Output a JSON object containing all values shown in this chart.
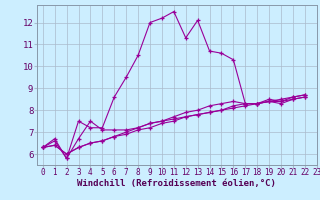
{
  "bg_color": "#cceeff",
  "line_color": "#990099",
  "grid_color": "#aabbcc",
  "xlabel": "Windchill (Refroidissement éolien,°C)",
  "xlabel_color": "#550055",
  "tick_color": "#660066",
  "xlabel_fontsize": 6.5,
  "tick_fontsize": 5.5,
  "ytick_fontsize": 6.5,
  "xlim": [
    -0.5,
    23
  ],
  "ylim": [
    5.5,
    12.8
  ],
  "xticks": [
    0,
    1,
    2,
    3,
    4,
    5,
    6,
    7,
    8,
    9,
    10,
    11,
    12,
    13,
    14,
    15,
    16,
    17,
    18,
    19,
    20,
    21,
    22,
    23
  ],
  "yticks": [
    6,
    7,
    8,
    9,
    10,
    11,
    12
  ],
  "series": [
    [
      6.3,
      6.7,
      5.8,
      7.5,
      7.2,
      7.2,
      8.6,
      9.5,
      10.5,
      12.0,
      12.2,
      12.5,
      11.3,
      12.1,
      10.7,
      10.6,
      10.3,
      8.3,
      8.3,
      8.5,
      8.4,
      8.6,
      8.7
    ],
    [
      6.3,
      6.6,
      5.8,
      6.7,
      7.5,
      7.1,
      7.1,
      7.1,
      7.2,
      7.4,
      7.5,
      7.6,
      7.7,
      7.8,
      7.9,
      8.0,
      8.1,
      8.2,
      8.3,
      8.4,
      8.5,
      8.6,
      8.7
    ],
    [
      6.3,
      6.4,
      6.0,
      6.3,
      6.5,
      6.6,
      6.8,
      6.9,
      7.1,
      7.2,
      7.4,
      7.5,
      7.7,
      7.8,
      7.9,
      8.0,
      8.2,
      8.3,
      8.3,
      8.4,
      8.4,
      8.5,
      8.6
    ],
    [
      6.3,
      6.4,
      6.0,
      6.3,
      6.5,
      6.6,
      6.8,
      7.0,
      7.2,
      7.4,
      7.5,
      7.7,
      7.9,
      8.0,
      8.2,
      8.3,
      8.4,
      8.3,
      8.3,
      8.4,
      8.3,
      8.5,
      8.6
    ]
  ]
}
